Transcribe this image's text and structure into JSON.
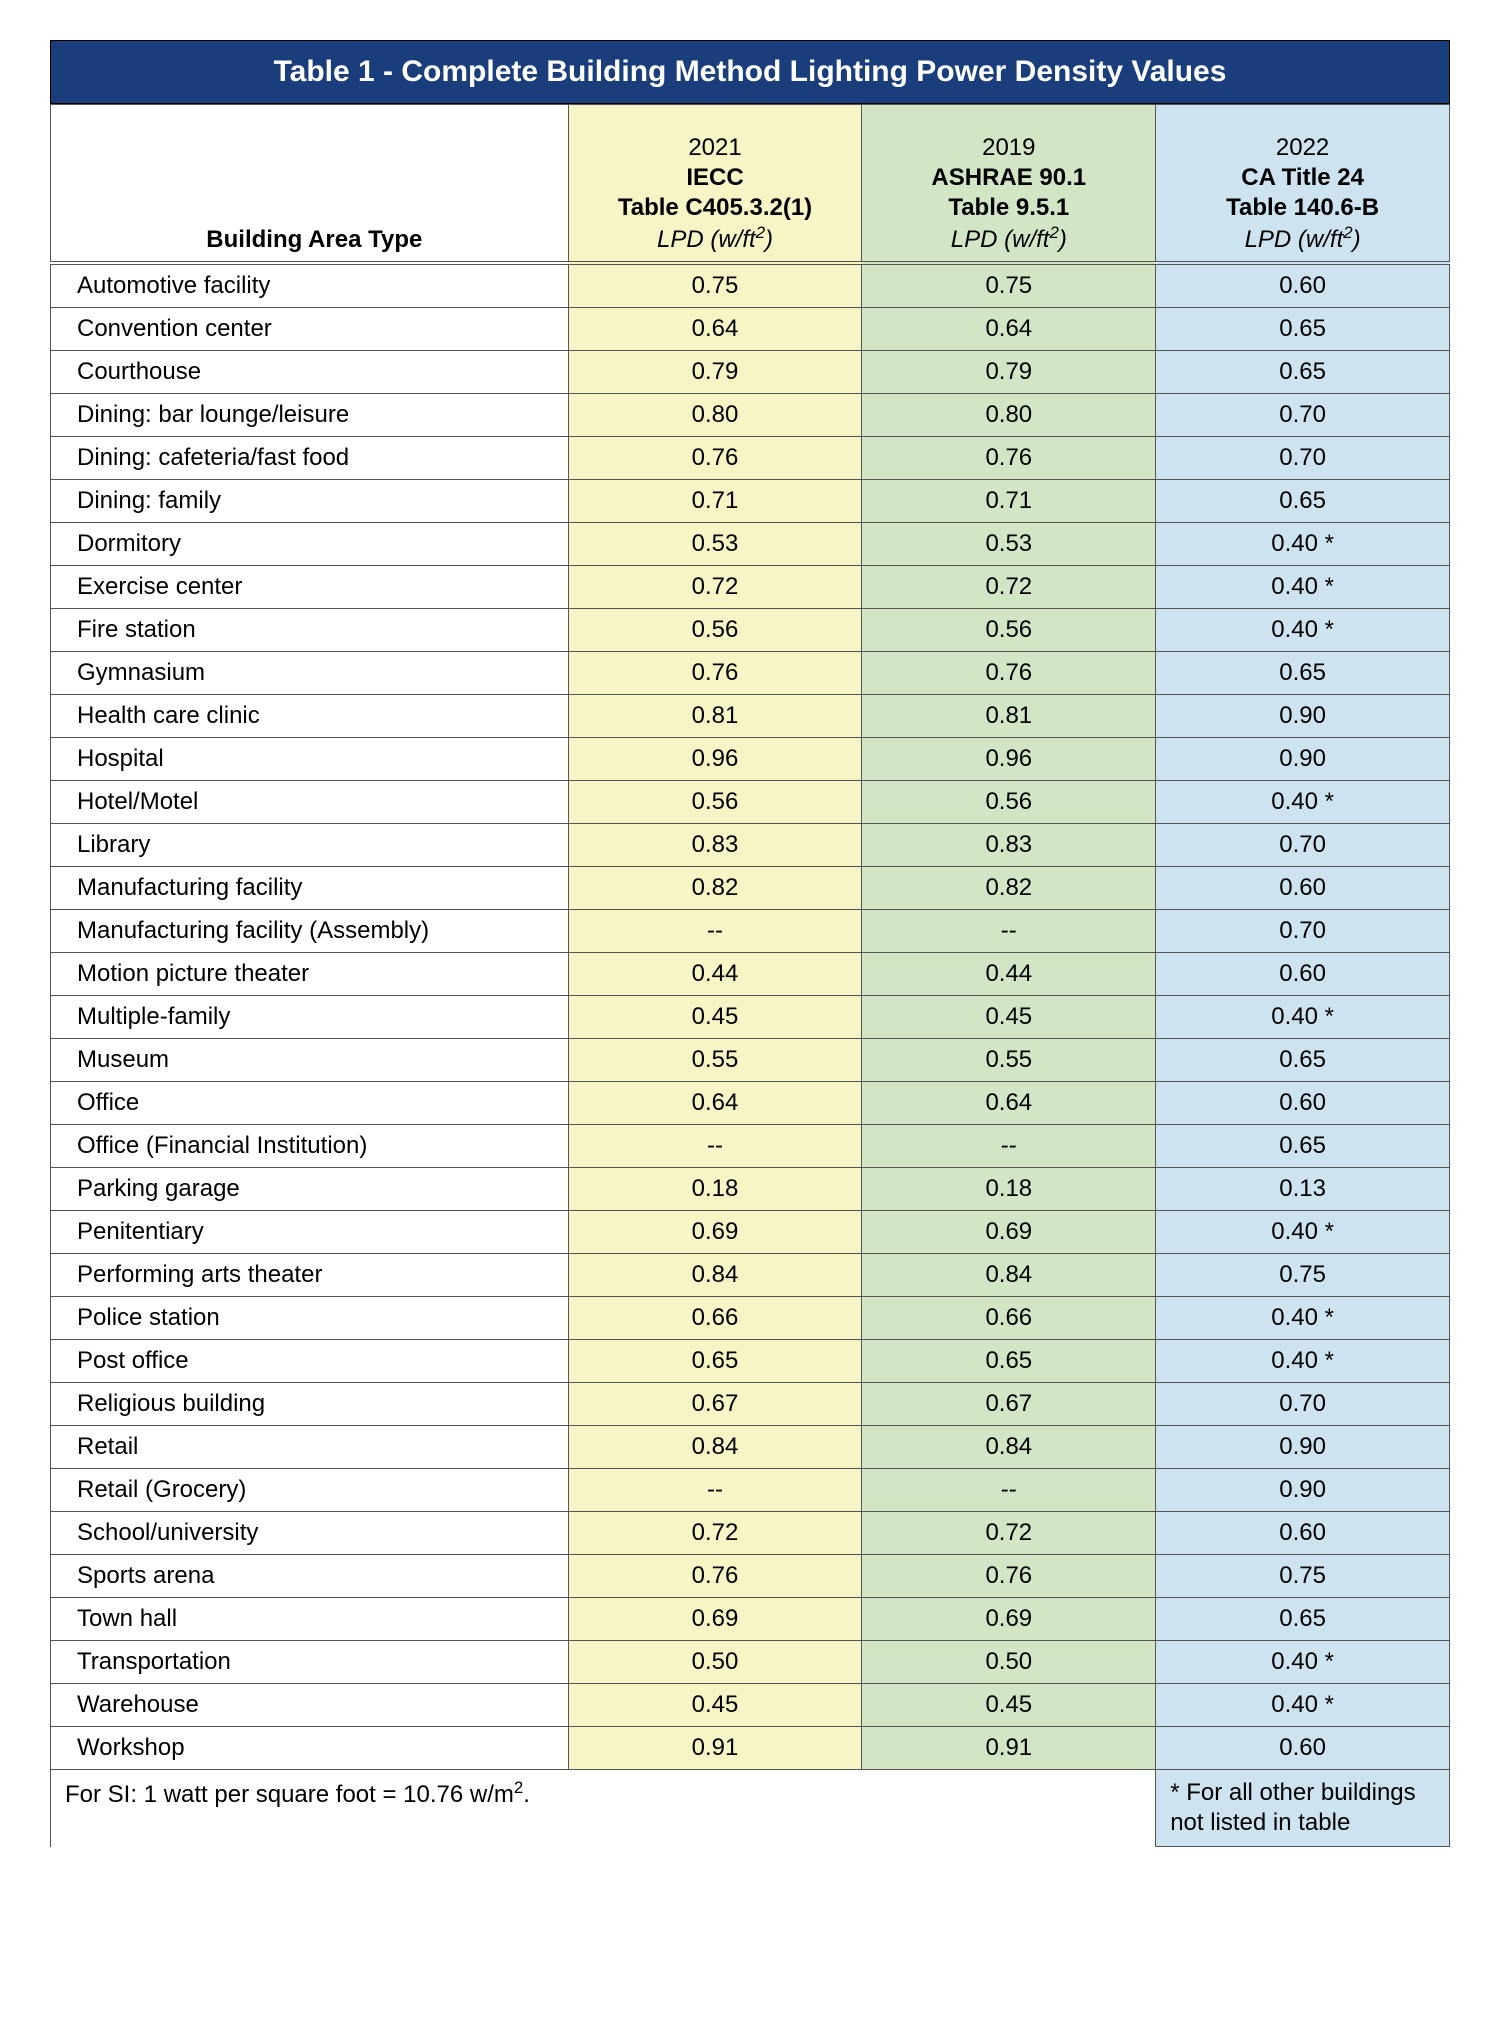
{
  "title": "Table 1 - Complete Building Method Lighting Power Density Values",
  "colors": {
    "title_bg": "#1a3d7c",
    "title_text": "#ffffff",
    "col1_bg": "#f7f4c5",
    "col2_bg": "#d2e5c5",
    "col3_bg": "#cde3ef",
    "border": "#555555"
  },
  "header": {
    "building_label": "Building Area Type",
    "lpd_label_html": "LPD (w/ft<sup>2</sup>)",
    "cols": [
      {
        "year": "2021",
        "std": "IECC",
        "table": "Table C405.3.2(1)"
      },
      {
        "year": "2019",
        "std": "ASHRAE 90.1",
        "table": "Table 9.5.1"
      },
      {
        "year": "2022",
        "std": "CA Title 24",
        "table": "Table 140.6-B"
      }
    ]
  },
  "rows": [
    {
      "name": "Automotive facility",
      "v": [
        "0.75",
        "0.75",
        "0.60"
      ]
    },
    {
      "name": "Convention center",
      "v": [
        "0.64",
        "0.64",
        "0.65"
      ]
    },
    {
      "name": "Courthouse",
      "v": [
        "0.79",
        "0.79",
        "0.65"
      ]
    },
    {
      "name": "Dining: bar lounge/leisure",
      "v": [
        "0.80",
        "0.80",
        "0.70"
      ]
    },
    {
      "name": "Dining: cafeteria/fast food",
      "v": [
        "0.76",
        "0.76",
        "0.70"
      ]
    },
    {
      "name": "Dining: family",
      "v": [
        "0.71",
        "0.71",
        "0.65"
      ]
    },
    {
      "name": "Dormitory",
      "v": [
        "0.53",
        "0.53",
        "0.40 *"
      ]
    },
    {
      "name": "Exercise center",
      "v": [
        "0.72",
        "0.72",
        "0.40 *"
      ]
    },
    {
      "name": "Fire station",
      "v": [
        "0.56",
        "0.56",
        "0.40 *"
      ]
    },
    {
      "name": "Gymnasium",
      "v": [
        "0.76",
        "0.76",
        "0.65"
      ]
    },
    {
      "name": "Health care clinic",
      "v": [
        "0.81",
        "0.81",
        "0.90"
      ]
    },
    {
      "name": "Hospital",
      "v": [
        "0.96",
        "0.96",
        "0.90"
      ]
    },
    {
      "name": "Hotel/Motel",
      "v": [
        "0.56",
        "0.56",
        "0.40 *"
      ]
    },
    {
      "name": "Library",
      "v": [
        "0.83",
        "0.83",
        "0.70"
      ]
    },
    {
      "name": "Manufacturing facility",
      "v": [
        "0.82",
        "0.82",
        "0.60"
      ]
    },
    {
      "name": "Manufacturing facility (Assembly)",
      "v": [
        "--",
        "--",
        "0.70"
      ]
    },
    {
      "name": "Motion picture theater",
      "v": [
        "0.44",
        "0.44",
        "0.60"
      ]
    },
    {
      "name": "Multiple-family",
      "v": [
        "0.45",
        "0.45",
        "0.40 *"
      ]
    },
    {
      "name": "Museum",
      "v": [
        "0.55",
        "0.55",
        "0.65"
      ]
    },
    {
      "name": "Office",
      "v": [
        "0.64",
        "0.64",
        "0.60"
      ]
    },
    {
      "name": "Office (Financial Institution)",
      "v": [
        "--",
        "--",
        "0.65"
      ]
    },
    {
      "name": "Parking garage",
      "v": [
        "0.18",
        "0.18",
        "0.13"
      ]
    },
    {
      "name": "Penitentiary",
      "v": [
        "0.69",
        "0.69",
        "0.40 *"
      ]
    },
    {
      "name": "Performing arts theater",
      "v": [
        "0.84",
        "0.84",
        "0.75"
      ]
    },
    {
      "name": "Police station",
      "v": [
        "0.66",
        "0.66",
        "0.40 *"
      ]
    },
    {
      "name": "Post office",
      "v": [
        "0.65",
        "0.65",
        "0.40 *"
      ]
    },
    {
      "name": "Religious building",
      "v": [
        "0.67",
        "0.67",
        "0.70"
      ]
    },
    {
      "name": "Retail",
      "v": [
        "0.84",
        "0.84",
        "0.90"
      ]
    },
    {
      "name": "Retail (Grocery)",
      "v": [
        "--",
        "--",
        "0.90"
      ]
    },
    {
      "name": "School/university",
      "v": [
        "0.72",
        "0.72",
        "0.60"
      ]
    },
    {
      "name": "Sports arena",
      "v": [
        "0.76",
        "0.76",
        "0.75"
      ]
    },
    {
      "name": "Town hall",
      "v": [
        "0.69",
        "0.69",
        "0.65"
      ]
    },
    {
      "name": "Transportation",
      "v": [
        "0.50",
        "0.50",
        "0.40 *"
      ]
    },
    {
      "name": "Warehouse",
      "v": [
        "0.45",
        "0.45",
        "0.40 *"
      ]
    },
    {
      "name": "Workshop",
      "v": [
        "0.91",
        "0.91",
        "0.60"
      ]
    }
  ],
  "footer": {
    "si_note_html": "For SI: 1 watt per square foot = 10.76 w/m<sup>2</sup>.",
    "star_note": "* For all other buildings not listed in table"
  }
}
